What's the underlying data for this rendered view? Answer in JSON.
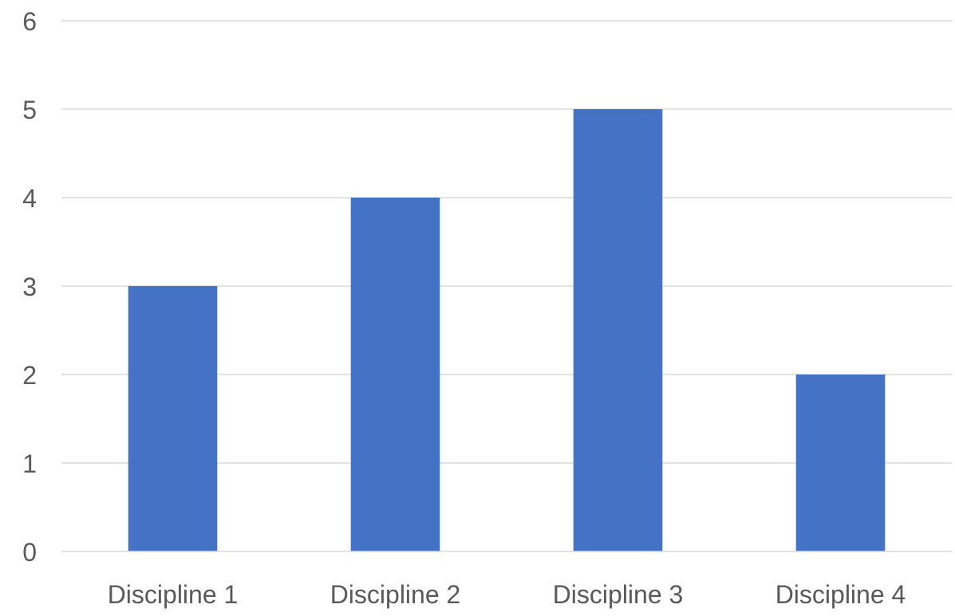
{
  "chart_data": {
    "type": "bar",
    "title": "",
    "xlabel": "",
    "ylabel": "",
    "categories": [
      "Discipline 1",
      "Discipline 2",
      "Discipline 3",
      "Discipline 4"
    ],
    "values": [
      3,
      4,
      5,
      2
    ],
    "ylim": [
      0,
      6
    ],
    "yticks": [
      "0",
      "1",
      "2",
      "3",
      "4",
      "5",
      "6"
    ],
    "grid": true,
    "legend": "none",
    "colors": {
      "bar": "#4472C4",
      "grid": "#D9D9D9",
      "axis": "#D9D9D9",
      "text": "#595959"
    }
  }
}
